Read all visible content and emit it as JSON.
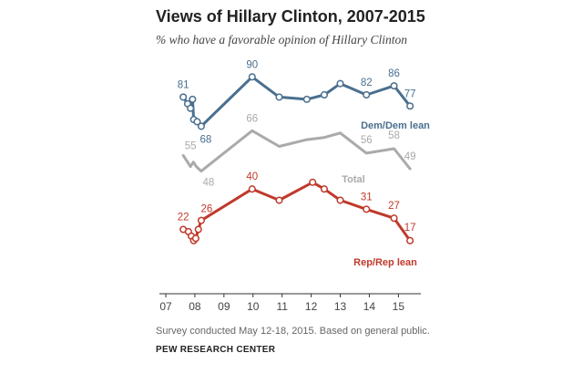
{
  "chart_data": {
    "type": "line",
    "title": "Views of Hillary Clinton, 2007-2015",
    "subtitle": "% who have a favorable opinion of Hillary Clinton",
    "xlim": [
      2007,
      2015.6
    ],
    "ylim": [
      10,
      95
    ],
    "grid": false,
    "x_ticks": [
      "07",
      "08",
      "09",
      "10",
      "11",
      "12",
      "13",
      "14",
      "15"
    ],
    "series": [
      {
        "name": "Dem/Dem lean",
        "color": "#4a6f8f",
        "points": [
          {
            "x": 2007.6,
            "y": 81,
            "label": "81"
          },
          {
            "x": 2007.75,
            "y": 78
          },
          {
            "x": 2007.85,
            "y": 76
          },
          {
            "x": 2007.92,
            "y": 80
          },
          {
            "x": 2007.96,
            "y": 71
          },
          {
            "x": 2008.08,
            "y": 70
          },
          {
            "x": 2008.22,
            "y": 68,
            "label": "68"
          },
          {
            "x": 2009.97,
            "y": 90,
            "label": "90"
          },
          {
            "x": 2010.9,
            "y": 81
          },
          {
            "x": 2011.85,
            "y": 80
          },
          {
            "x": 2012.45,
            "y": 82
          },
          {
            "x": 2013.0,
            "y": 87
          },
          {
            "x": 2013.9,
            "y": 82,
            "label": "82"
          },
          {
            "x": 2014.85,
            "y": 86,
            "label": "86"
          },
          {
            "x": 2015.4,
            "y": 77,
            "label": "77"
          }
        ]
      },
      {
        "name": "Total",
        "color": "#aaaaaa",
        "points": [
          {
            "x": 2007.6,
            "y": 55,
            "label": "55"
          },
          {
            "x": 2007.85,
            "y": 50
          },
          {
            "x": 2007.95,
            "y": 52
          },
          {
            "x": 2008.05,
            "y": 50
          },
          {
            "x": 2008.22,
            "y": 48,
            "label": "48"
          },
          {
            "x": 2009.97,
            "y": 66,
            "label": "66"
          },
          {
            "x": 2010.9,
            "y": 59
          },
          {
            "x": 2011.85,
            "y": 62
          },
          {
            "x": 2012.45,
            "y": 63
          },
          {
            "x": 2013.0,
            "y": 65
          },
          {
            "x": 2013.9,
            "y": 56,
            "label": "56"
          },
          {
            "x": 2014.85,
            "y": 58,
            "label": "58"
          },
          {
            "x": 2015.4,
            "y": 49,
            "label": "49"
          }
        ]
      },
      {
        "name": "Rep/Rep lean",
        "color": "#c0392b",
        "points": [
          {
            "x": 2007.6,
            "y": 22,
            "label": "22"
          },
          {
            "x": 2007.78,
            "y": 21
          },
          {
            "x": 2007.88,
            "y": 19
          },
          {
            "x": 2007.96,
            "y": 17
          },
          {
            "x": 2008.03,
            "y": 18
          },
          {
            "x": 2008.12,
            "y": 22
          },
          {
            "x": 2008.22,
            "y": 26,
            "label": "26"
          },
          {
            "x": 2009.97,
            "y": 40,
            "label": "40"
          },
          {
            "x": 2010.9,
            "y": 35
          },
          {
            "x": 2012.05,
            "y": 43
          },
          {
            "x": 2012.45,
            "y": 40
          },
          {
            "x": 2013.0,
            "y": 35
          },
          {
            "x": 2013.9,
            "y": 31,
            "label": "31"
          },
          {
            "x": 2014.85,
            "y": 27,
            "label": "27"
          },
          {
            "x": 2015.4,
            "y": 17,
            "label": "17"
          }
        ]
      }
    ]
  },
  "footer": {
    "note": "Survey conducted May 12-18, 2015. Based on general public.",
    "source": "PEW RESEARCH CENTER"
  }
}
